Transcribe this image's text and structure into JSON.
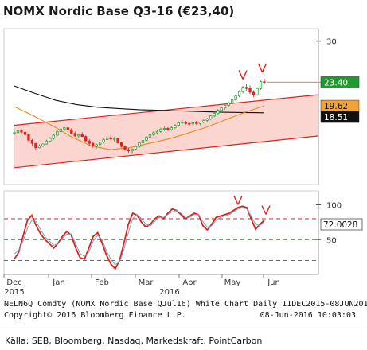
{
  "title": "NOMX Nordic Base Q3-16 (€23,40)",
  "chart_data": [
    {
      "type": "line",
      "panel": "price",
      "y_ticks": [
        30
      ],
      "ylim": [
        7,
        32
      ],
      "x_labels": [
        "Dec",
        "Jan",
        "Feb",
        "Mar",
        "Apr",
        "May",
        "Jun"
      ],
      "year_labels": [
        "2015",
        "2016"
      ],
      "date_range": [
        "2015-12-11",
        "2016-06-08"
      ],
      "ohlc": [
        [
          15.2,
          15.6,
          14.9,
          15.3
        ],
        [
          15.3,
          15.8,
          15.1,
          15.6
        ],
        [
          15.6,
          15.9,
          15.2,
          15.4
        ],
        [
          15.4,
          15.5,
          14.8,
          15.0
        ],
        [
          15.0,
          15.1,
          13.9,
          14.1
        ],
        [
          14.1,
          14.3,
          13.2,
          13.6
        ],
        [
          13.6,
          13.7,
          12.6,
          12.9
        ],
        [
          12.9,
          13.4,
          12.8,
          13.2
        ],
        [
          13.2,
          13.6,
          13.0,
          13.5
        ],
        [
          13.5,
          14.2,
          13.4,
          14.0
        ],
        [
          14.0,
          14.6,
          13.8,
          14.4
        ],
        [
          14.4,
          15.1,
          14.2,
          14.9
        ],
        [
          14.9,
          15.7,
          14.8,
          15.5
        ],
        [
          15.5,
          16.1,
          15.2,
          15.9
        ],
        [
          15.9,
          16.3,
          15.6,
          16.1
        ],
        [
          16.1,
          16.4,
          15.7,
          15.8
        ],
        [
          15.8,
          16.0,
          15.0,
          15.2
        ],
        [
          15.2,
          15.5,
          14.6,
          14.8
        ],
        [
          14.8,
          15.2,
          14.5,
          15.0
        ],
        [
          15.0,
          15.4,
          14.6,
          14.7
        ],
        [
          14.7,
          14.9,
          13.8,
          14.0
        ],
        [
          14.0,
          14.3,
          13.3,
          13.6
        ],
        [
          13.6,
          13.9,
          12.9,
          13.2
        ],
        [
          13.2,
          13.6,
          12.8,
          13.4
        ],
        [
          13.4,
          14.0,
          13.2,
          13.8
        ],
        [
          13.8,
          14.4,
          13.6,
          14.2
        ],
        [
          14.2,
          14.8,
          14.0,
          14.5
        ],
        [
          14.5,
          14.9,
          14.1,
          14.3
        ],
        [
          14.3,
          14.6,
          13.9,
          14.4
        ],
        [
          14.4,
          14.5,
          13.5,
          13.7
        ],
        [
          13.7,
          13.9,
          12.9,
          13.1
        ],
        [
          13.1,
          13.3,
          12.4,
          12.6
        ],
        [
          12.6,
          12.9,
          12.1,
          12.4
        ],
        [
          12.4,
          12.8,
          12.0,
          12.7
        ],
        [
          12.7,
          13.3,
          12.5,
          13.1
        ],
        [
          13.1,
          13.9,
          12.9,
          13.7
        ],
        [
          13.7,
          14.3,
          13.5,
          14.1
        ],
        [
          14.1,
          14.8,
          13.9,
          14.6
        ],
        [
          14.6,
          15.2,
          14.4,
          15.0
        ],
        [
          15.0,
          15.6,
          14.7,
          15.3
        ],
        [
          15.3,
          15.7,
          15.0,
          15.5
        ],
        [
          15.5,
          16.1,
          15.3,
          15.9
        ],
        [
          15.9,
          16.3,
          15.6,
          16.0
        ],
        [
          16.0,
          16.2,
          15.6,
          15.8
        ],
        [
          15.8,
          16.3,
          15.6,
          16.1
        ],
        [
          16.1,
          16.7,
          15.9,
          16.5
        ],
        [
          16.5,
          17.1,
          16.3,
          16.9
        ],
        [
          16.9,
          17.3,
          16.6,
          17.0
        ],
        [
          17.0,
          17.2,
          16.6,
          16.8
        ],
        [
          16.8,
          17.0,
          16.4,
          16.7
        ],
        [
          16.7,
          17.1,
          16.5,
          16.9
        ],
        [
          16.9,
          17.2,
          16.6,
          16.8
        ],
        [
          16.8,
          17.1,
          16.5,
          17.0
        ],
        [
          17.0,
          17.5,
          16.8,
          17.3
        ],
        [
          17.3,
          17.7,
          17.0,
          17.5
        ],
        [
          17.5,
          18.2,
          17.3,
          18.0
        ],
        [
          18.0,
          18.6,
          17.8,
          18.4
        ],
        [
          18.4,
          19.1,
          18.2,
          18.9
        ],
        [
          18.9,
          19.5,
          18.6,
          19.3
        ],
        [
          19.3,
          19.9,
          19.0,
          19.7
        ],
        [
          19.7,
          20.3,
          19.4,
          20.1
        ],
        [
          20.1,
          20.8,
          19.9,
          20.6
        ],
        [
          20.6,
          21.4,
          20.4,
          21.2
        ],
        [
          21.2,
          22.1,
          21.0,
          21.9
        ],
        [
          21.9,
          22.8,
          21.6,
          22.6
        ],
        [
          22.6,
          23.2,
          22.0,
          22.4
        ],
        [
          22.4,
          22.9,
          21.5,
          21.8
        ],
        [
          21.8,
          22.1,
          21.0,
          21.4
        ],
        [
          21.4,
          22.6,
          21.2,
          22.4
        ],
        [
          22.4,
          23.7,
          22.2,
          23.5
        ],
        [
          23.5,
          24.0,
          23.1,
          23.4
        ]
      ],
      "series": [
        {
          "type": "moving-average",
          "color": "#111111",
          "values": [
            22.8,
            21.6,
            20.5,
            19.8,
            19.4,
            19.2,
            19.0,
            18.9,
            18.8,
            18.7,
            18.6,
            18.55,
            18.51
          ]
        },
        {
          "type": "moving-average",
          "color": "#e88a1a",
          "values": [
            19.5,
            18.0,
            16.4,
            14.6,
            13.2,
            12.6,
            12.9,
            13.6,
            14.3,
            15.2,
            16.2,
            17.4,
            18.6,
            19.62
          ]
        }
      ],
      "trend_channel": {
        "upper": [
          16.5,
          21.4
        ],
        "lower": [
          9.7,
          14.8
        ],
        "fill": "#fbd6d0",
        "line": "#e0211b"
      },
      "price_line": {
        "value": 23.4,
        "color": "#e88a1a"
      },
      "value_tags": [
        {
          "label": "23.40",
          "value": 23.4,
          "bg": "#1e9a2e",
          "fg": "#ffffff"
        },
        {
          "label": "19.62",
          "value": 19.62,
          "bg": "#f3a233",
          "fg": "#111111"
        },
        {
          "label": "18.51",
          "value": 18.51,
          "bg": "#111111",
          "fg": "#ffffff"
        }
      ],
      "annotations": [
        {
          "type": "arrow",
          "color": "#e0211b",
          "count": 2
        }
      ]
    },
    {
      "type": "line",
      "panel": "oscillator",
      "y_ticks": [
        100,
        50
      ],
      "ylim": [
        0,
        120
      ],
      "reference_lines": [
        {
          "value": 80,
          "color": "#e0211b"
        },
        {
          "value": 50,
          "color": "#1e9a2e"
        },
        {
          "value": 20,
          "color": "#1e9a2e"
        }
      ],
      "series": [
        {
          "type": "fast",
          "color": "#e0211b",
          "values": [
            22,
            32,
            55,
            78,
            85,
            70,
            58,
            50,
            44,
            38,
            45,
            55,
            62,
            56,
            38,
            24,
            22,
            38,
            55,
            60,
            45,
            28,
            15,
            8,
            20,
            45,
            72,
            88,
            85,
            75,
            68,
            72,
            80,
            84,
            80,
            88,
            94,
            92,
            86,
            80,
            84,
            88,
            86,
            70,
            64,
            72,
            82,
            84,
            86,
            88,
            92,
            96,
            98,
            96,
            80,
            65,
            72,
            78
          ]
        },
        {
          "type": "slow",
          "color": "#6fa5c8",
          "values": [
            30,
            34,
            48,
            66,
            78,
            76,
            64,
            54,
            48,
            42,
            44,
            52,
            58,
            58,
            44,
            30,
            26,
            32,
            48,
            56,
            50,
            34,
            22,
            14,
            18,
            36,
            60,
            80,
            86,
            80,
            72,
            70,
            76,
            82,
            82,
            86,
            90,
            92,
            88,
            82,
            82,
            86,
            86,
            76,
            68,
            70,
            78,
            82,
            84,
            86,
            90,
            94,
            96,
            94,
            84,
            72,
            70,
            76
          ]
        }
      ],
      "value_tags": [
        {
          "label": "72.0028",
          "value": 72.0028,
          "bg": "#ffffff",
          "fg": "#111111"
        }
      ],
      "annotations": [
        {
          "type": "arrow",
          "color": "#e0211b",
          "count": 2
        }
      ]
    }
  ],
  "footer": {
    "left_line1": "NELN6Q Comdty (NOMX Nordic Base QJul16) White Chart  Daily  11DEC2015-08JUN2016",
    "left_line2": "Copyright© 2016 Bloomberg Finance L.P.",
    "right_line2": "08-Jun-2016 10:03:03",
    "source": "Källa: SEB, Bloomberg, Nasdaq, Markedskraft, PointCarbon"
  }
}
